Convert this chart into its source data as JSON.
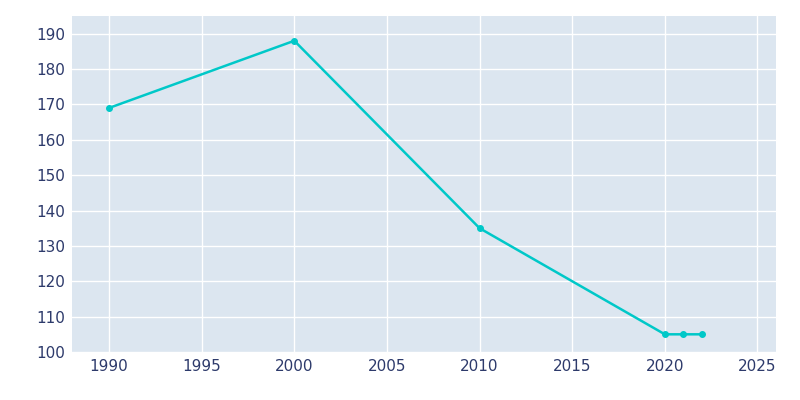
{
  "years": [
    1990,
    2000,
    2010,
    2020,
    2021,
    2022
  ],
  "population": [
    169,
    188,
    135,
    105,
    105,
    105
  ],
  "line_color": "#00c8c8",
  "marker_color": "#00c8c8",
  "background_color": "#dce6f0",
  "plot_bg_color": "#dce6f0",
  "outer_bg_color": "#ffffff",
  "grid_color": "#ffffff",
  "tick_color": "#2d3a6b",
  "ylim": [
    100,
    195
  ],
  "xlim": [
    1988,
    2026
  ],
  "yticks": [
    100,
    110,
    120,
    130,
    140,
    150,
    160,
    170,
    180,
    190
  ],
  "xticks": [
    1990,
    1995,
    2000,
    2005,
    2010,
    2015,
    2020,
    2025
  ],
  "linewidth": 1.8,
  "markersize": 4
}
